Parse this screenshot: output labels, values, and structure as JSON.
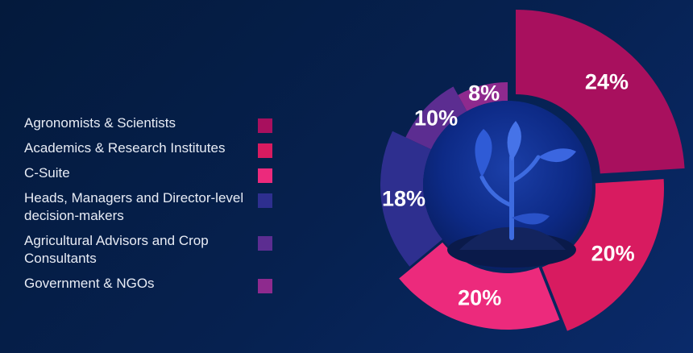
{
  "chart_data": {
    "type": "pie",
    "title": "",
    "categories": [
      "Agronomists & Scientists",
      "Academics & Research Institutes",
      "C-Suite",
      "Heads, Managers and Director-level decision-makers",
      "Agricultural Advisors and Crop Consultants",
      "Government & NGOs"
    ],
    "values": [
      24,
      20,
      20,
      18,
      10,
      8
    ],
    "value_labels": [
      "24%",
      "20%",
      "20%",
      "18%",
      "10%",
      "8%"
    ],
    "colors": [
      "#a8105e",
      "#d81b60",
      "#ec2a7c",
      "#2e2f8f",
      "#5c2d91",
      "#8e2a8e"
    ],
    "legend_placement": "left",
    "center_image_icon": "seedling-icon"
  },
  "legend": {
    "items": [
      {
        "label": "Agronomists & Scientists",
        "color": "#a8105e"
      },
      {
        "label": "Academics & Research Institutes",
        "color": "#d81b60"
      },
      {
        "label": "C-Suite",
        "color": "#ec2a7c"
      },
      {
        "label": "Heads, Managers and Director-level decision-makers",
        "color": "#2e2f8f"
      },
      {
        "label": "Agricultural Advisors and Crop Consultants",
        "color": "#5c2d91"
      },
      {
        "label": "Government & NGOs",
        "color": "#8e2a8e"
      }
    ]
  }
}
